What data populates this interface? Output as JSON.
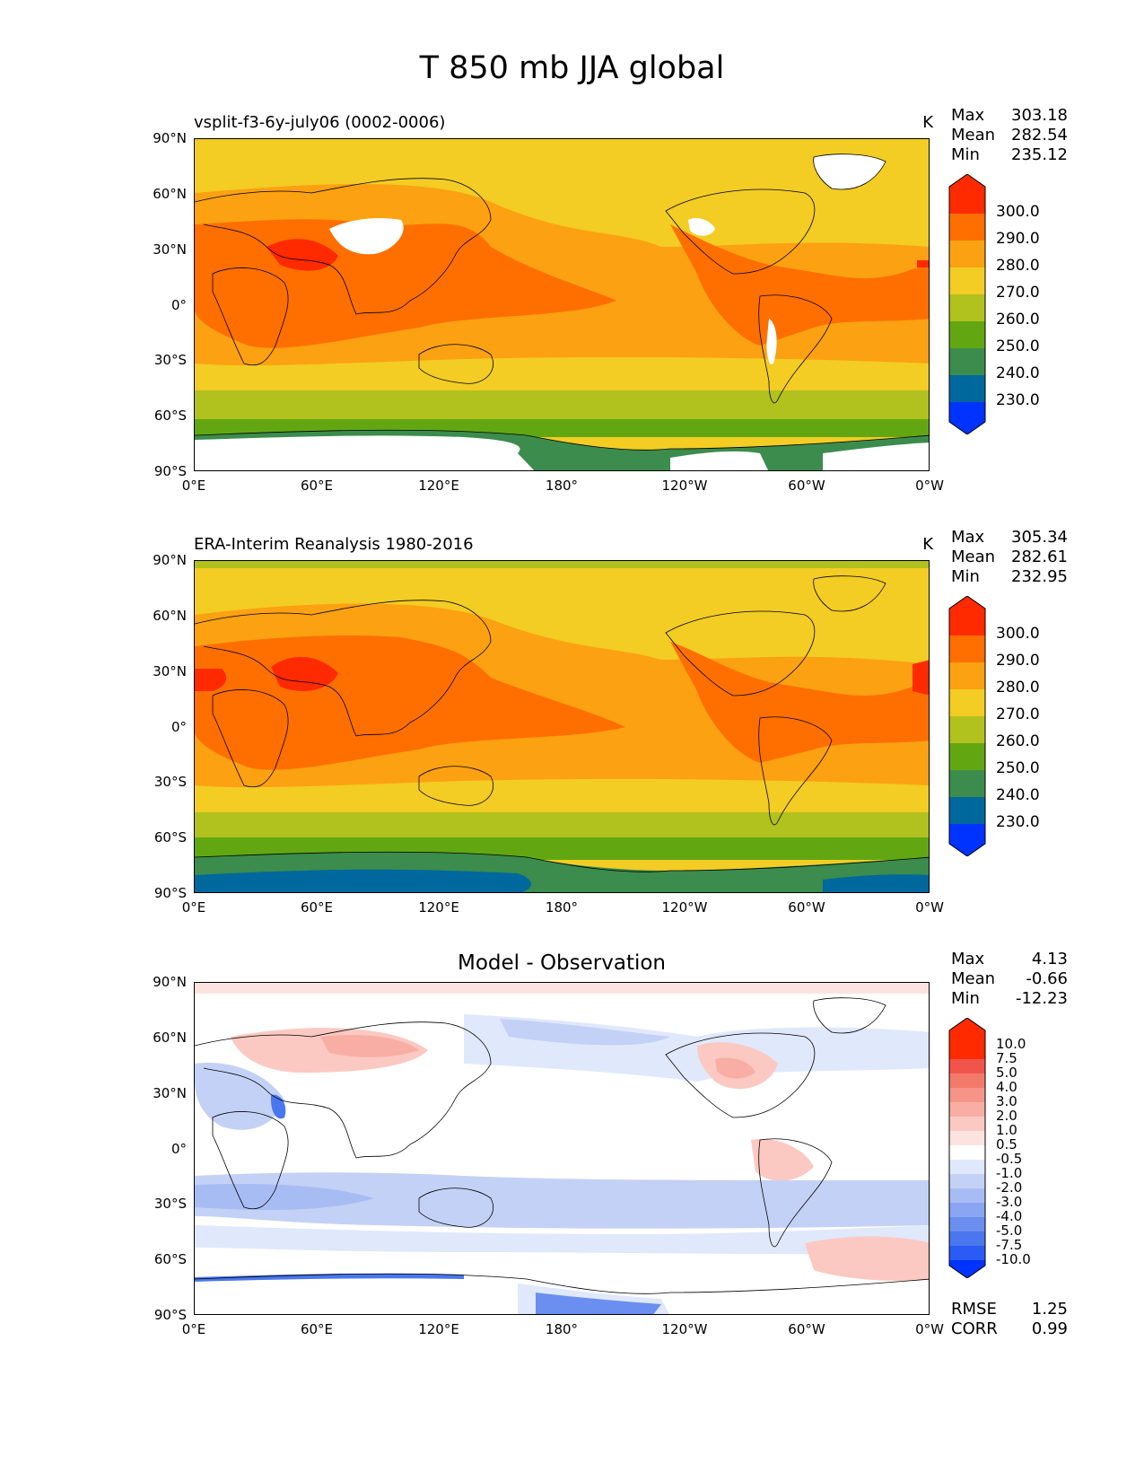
{
  "title": "T 850 mb JJA global",
  "xticks": [
    "0°E",
    "60°E",
    "120°E",
    "180°",
    "120°W",
    "60°W",
    "0°W"
  ],
  "yticks": [
    "90°N",
    "60°N",
    "30°N",
    "0°",
    "30°S",
    "60°S",
    "90°S"
  ],
  "panels": [
    {
      "subtitle": "vsplit-f3-6y-july06 (0002-0006)",
      "units": "K",
      "stats": {
        "max_label": "Max",
        "max": "303.18",
        "mean_label": "Mean",
        "mean": "282.54",
        "min_label": "Min",
        "min": "235.12"
      },
      "colorbar": {
        "labels": [
          "300.0",
          "290.0",
          "280.0",
          "270.0",
          "260.0",
          "250.0",
          "240.0",
          "230.0"
        ]
      }
    },
    {
      "subtitle": "ERA-Interim Reanalysis 1980-2016",
      "units": "K",
      "stats": {
        "max_label": "Max",
        "max": "305.34",
        "mean_label": "Mean",
        "mean": "282.61",
        "min_label": "Min",
        "min": "232.95"
      },
      "colorbar": {
        "labels": [
          "300.0",
          "290.0",
          "280.0",
          "270.0",
          "260.0",
          "250.0",
          "240.0",
          "230.0"
        ]
      }
    },
    {
      "subtitle": "Model - Observation",
      "stats": {
        "max_label": "Max",
        "max": "4.13",
        "mean_label": "Mean",
        "mean": "-0.66",
        "min_label": "Min",
        "min": "-12.23"
      },
      "colorbar": {
        "labels": [
          "10.0",
          "7.5",
          "5.0",
          "4.0",
          "3.0",
          "2.0",
          "1.0",
          "0.5",
          "-0.5",
          "-1.0",
          "-2.0",
          "-3.0",
          "-4.0",
          "-5.0",
          "-7.5",
          "-10.0"
        ]
      },
      "metrics": {
        "rmse_label": "RMSE",
        "rmse": "1.25",
        "corr_label": "CORR",
        "corr": "0.99"
      }
    }
  ],
  "chart_data": [
    {
      "type": "heatmap",
      "title": "vsplit-f3-6y-july06 (0002-0006)",
      "units": "K",
      "xlim": [
        0,
        360
      ],
      "ylim": [
        -90,
        90
      ],
      "levels": [
        230,
        240,
        250,
        260,
        270,
        280,
        290,
        300
      ],
      "colors": [
        "#0033ff",
        "#00689d",
        "#3b8c4d",
        "#62a712",
        "#b1c11d",
        "#f3cc24",
        "#fca111",
        "#ff6f00",
        "#ff2a00"
      ],
      "max": 303.18,
      "mean": 282.54,
      "min": 235.12
    },
    {
      "type": "heatmap",
      "title": "ERA-Interim Reanalysis 1980-2016",
      "units": "K",
      "xlim": [
        0,
        360
      ],
      "ylim": [
        -90,
        90
      ],
      "levels": [
        230,
        240,
        250,
        260,
        270,
        280,
        290,
        300
      ],
      "colors": [
        "#0033ff",
        "#00689d",
        "#3b8c4d",
        "#62a712",
        "#b1c11d",
        "#f3cc24",
        "#fca111",
        "#ff6f00",
        "#ff2a00"
      ],
      "max": 305.34,
      "mean": 282.61,
      "min": 232.95
    },
    {
      "type": "heatmap",
      "title": "Model - Observation",
      "xlim": [
        0,
        360
      ],
      "ylim": [
        -90,
        90
      ],
      "levels": [
        -10,
        -7.5,
        -5,
        -4,
        -3,
        -2,
        -1,
        -0.5,
        0.5,
        1,
        2,
        3,
        4,
        5,
        7.5,
        10
      ],
      "colors": [
        "#0033ff",
        "#2a5cf5",
        "#4a77ee",
        "#6a8ff0",
        "#8aa5f2",
        "#a8bcf4",
        "#c4d1f6",
        "#e0e8fb",
        "#ffffff",
        "#fde3df",
        "#fbc9c2",
        "#f8aea4",
        "#f59487",
        "#f27a6a",
        "#f0544a",
        "#ff2a00",
        "#ff2a00"
      ],
      "max": 4.13,
      "mean": -0.66,
      "min": -12.23,
      "rmse": 1.25,
      "corr": 0.99
    }
  ]
}
